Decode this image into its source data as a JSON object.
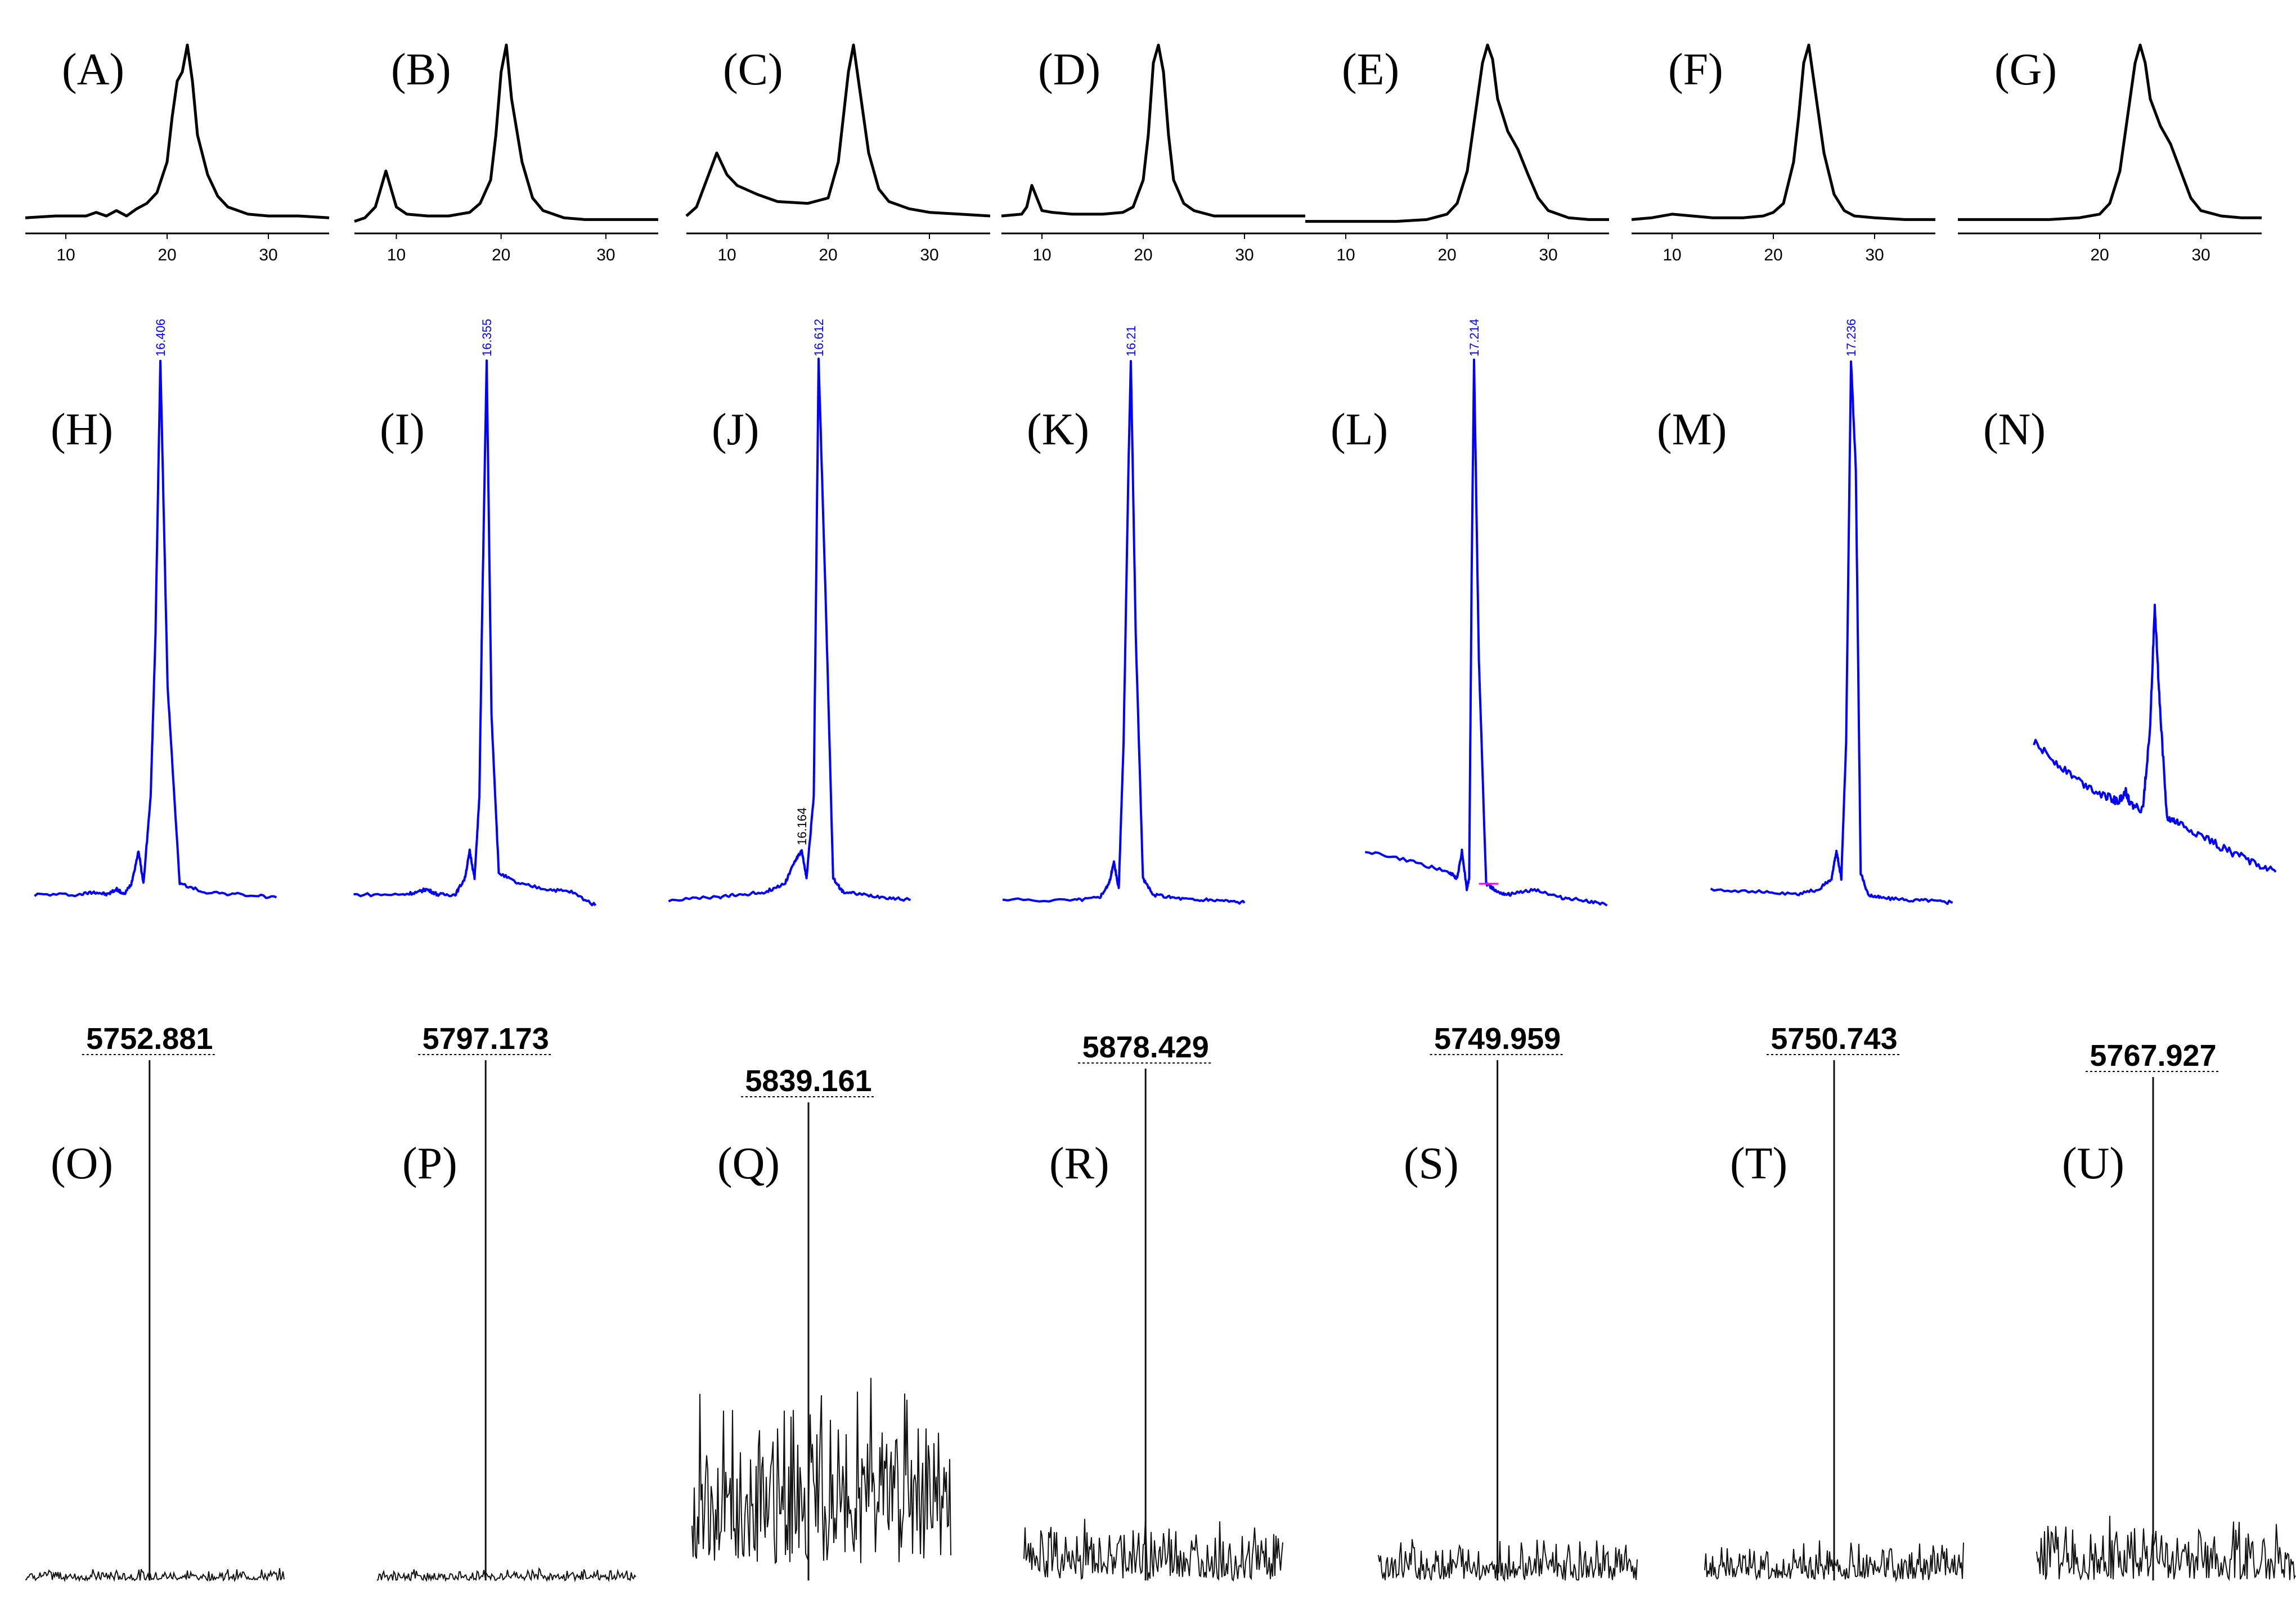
{
  "colors": {
    "sec": "#000000",
    "hplc": "#0000ff",
    "ms": "#111111",
    "baseline_marker": "#ff00ff"
  },
  "chart_data": [
    {
      "id": "A",
      "label": "(A)",
      "type": "line",
      "x_ticks": [
        10,
        20,
        30
      ],
      "xlim": [
        6,
        36
      ],
      "x": [
        6,
        9,
        12,
        13,
        14,
        15,
        16,
        17,
        18,
        19,
        20,
        20.5,
        21,
        21.5,
        22,
        22.5,
        23,
        24,
        25,
        26,
        28,
        30,
        33,
        36
      ],
      "y": [
        0.04,
        0.05,
        0.05,
        0.07,
        0.05,
        0.08,
        0.05,
        0.09,
        0.12,
        0.18,
        0.35,
        0.6,
        0.8,
        0.85,
        1.0,
        0.8,
        0.5,
        0.28,
        0.16,
        0.1,
        0.06,
        0.05,
        0.05,
        0.04
      ]
    },
    {
      "id": "B",
      "label": "(B)",
      "type": "line",
      "x_ticks": [
        10,
        20,
        30
      ],
      "xlim": [
        6,
        35
      ],
      "x": [
        6,
        7,
        8,
        8.5,
        9,
        9.5,
        10,
        11,
        13,
        15,
        17,
        18,
        19,
        19.5,
        20,
        20.5,
        21,
        22,
        23,
        24,
        26,
        28,
        31,
        35
      ],
      "y": [
        0.02,
        0.04,
        0.1,
        0.2,
        0.3,
        0.2,
        0.1,
        0.06,
        0.05,
        0.05,
        0.07,
        0.12,
        0.25,
        0.5,
        0.85,
        1.0,
        0.7,
        0.35,
        0.15,
        0.08,
        0.04,
        0.03,
        0.03,
        0.03
      ]
    },
    {
      "id": "C",
      "label": "(C)",
      "type": "line",
      "x_ticks": [
        10,
        20,
        30
      ],
      "xlim": [
        6,
        36
      ],
      "x": [
        6,
        7,
        8,
        9,
        10,
        11,
        13,
        15,
        18,
        20,
        21,
        21.5,
        22,
        22.5,
        23,
        24,
        25,
        26,
        28,
        30,
        33,
        36
      ],
      "y": [
        0.05,
        0.1,
        0.25,
        0.4,
        0.28,
        0.22,
        0.17,
        0.13,
        0.12,
        0.15,
        0.35,
        0.6,
        0.85,
        1.0,
        0.8,
        0.4,
        0.2,
        0.13,
        0.09,
        0.07,
        0.06,
        0.05
      ]
    },
    {
      "id": "D",
      "label": "(D)",
      "type": "line",
      "x_ticks": [
        10,
        20,
        30
      ],
      "xlim": [
        6,
        36
      ],
      "x": [
        6,
        8,
        8.5,
        9,
        9.5,
        10,
        11,
        13,
        16,
        18,
        19,
        20,
        20.5,
        21,
        21.5,
        22,
        22.5,
        23,
        24,
        25,
        27,
        30,
        33,
        36
      ],
      "y": [
        0.05,
        0.06,
        0.1,
        0.22,
        0.15,
        0.08,
        0.07,
        0.06,
        0.06,
        0.07,
        0.1,
        0.25,
        0.5,
        0.9,
        1.0,
        0.85,
        0.5,
        0.25,
        0.12,
        0.08,
        0.05,
        0.05,
        0.05,
        0.05
      ]
    },
    {
      "id": "E",
      "label": "(E)",
      "type": "line",
      "x_ticks": [
        10,
        20,
        30
      ],
      "xlim": [
        6,
        36
      ],
      "x": [
        6,
        10,
        15,
        18,
        20,
        21,
        22,
        23,
        23.5,
        24,
        24.5,
        25,
        26,
        27,
        28,
        29,
        30,
        32,
        34,
        36
      ],
      "y": [
        0.02,
        0.02,
        0.02,
        0.03,
        0.06,
        0.12,
        0.3,
        0.7,
        0.9,
        1.0,
        0.92,
        0.7,
        0.52,
        0.42,
        0.28,
        0.15,
        0.08,
        0.04,
        0.03,
        0.03
      ]
    },
    {
      "id": "F",
      "label": "(F)",
      "type": "line",
      "x_ticks": [
        10,
        20,
        30
      ],
      "xlim": [
        6,
        36
      ],
      "x": [
        6,
        8,
        10,
        14,
        17,
        19,
        20,
        21,
        22,
        22.5,
        23,
        23.5,
        24,
        25,
        26,
        27,
        28,
        30,
        33,
        36
      ],
      "y": [
        0.03,
        0.04,
        0.06,
        0.04,
        0.04,
        0.05,
        0.07,
        0.12,
        0.35,
        0.6,
        0.9,
        1.0,
        0.8,
        0.4,
        0.17,
        0.08,
        0.05,
        0.04,
        0.03,
        0.03
      ]
    },
    {
      "id": "G",
      "label": "(G)",
      "type": "line",
      "x_ticks": [
        20,
        30
      ],
      "xlim": [
        6,
        36
      ],
      "x": [
        6,
        10,
        15,
        18,
        20,
        21,
        22,
        23,
        23.5,
        24,
        24.5,
        25,
        26,
        27,
        28,
        29,
        30,
        32,
        34,
        36
      ],
      "y": [
        0.03,
        0.03,
        0.03,
        0.04,
        0.06,
        0.12,
        0.3,
        0.7,
        0.9,
        1.0,
        0.9,
        0.7,
        0.55,
        0.45,
        0.3,
        0.15,
        0.08,
        0.05,
        0.04,
        0.04
      ]
    },
    {
      "id": "H",
      "label": "(H)",
      "type": "line",
      "peak_label": "16.406",
      "x": [
        0,
        0.18,
        0.25,
        0.3,
        0.34,
        0.37,
        0.4,
        0.43,
        0.45,
        0.48,
        0.5,
        0.52,
        0.55,
        0.6,
        0.7,
        0.85,
        1
      ],
      "y": [
        0.02,
        0.02,
        0.025,
        0.02,
        0.03,
        0.02,
        0.04,
        0.1,
        0.04,
        0.2,
        0.5,
        1.0,
        0.4,
        0.04,
        0.025,
        0.02,
        0.015
      ]
    },
    {
      "id": "I",
      "label": "(I)",
      "type": "line",
      "peak_label": "16.355",
      "x": [
        0,
        0.2,
        0.27,
        0.3,
        0.35,
        0.42,
        0.46,
        0.48,
        0.5,
        0.52,
        0.53,
        0.55,
        0.57,
        0.6,
        0.68,
        0.8,
        0.9,
        1
      ],
      "y": [
        0.02,
        0.02,
        0.025,
        0.03,
        0.02,
        0.02,
        0.05,
        0.1,
        0.05,
        0.2,
        0.5,
        1.0,
        0.35,
        0.06,
        0.04,
        0.03,
        0.025,
        0.0
      ]
    },
    {
      "id": "J",
      "label": "(J)",
      "type": "line",
      "peak_label": "16.612",
      "minor_label": "16.164",
      "x": [
        0,
        0.2,
        0.3,
        0.4,
        0.48,
        0.52,
        0.55,
        0.57,
        0.6,
        0.62,
        0.65,
        0.68,
        0.72,
        0.8,
        0.9,
        1
      ],
      "y": [
        0.01,
        0.015,
        0.02,
        0.025,
        0.04,
        0.08,
        0.1,
        0.05,
        0.2,
        1.0,
        0.55,
        0.05,
        0.025,
        0.02,
        0.015,
        0.01
      ]
    },
    {
      "id": "K",
      "label": "(K)",
      "type": "line",
      "peak_label": "16.21",
      "x": [
        0,
        0.3,
        0.4,
        0.44,
        0.46,
        0.48,
        0.5,
        0.52,
        0.53,
        0.55,
        0.58,
        0.62,
        0.7,
        0.8,
        0.9,
        1
      ],
      "y": [
        0.01,
        0.01,
        0.015,
        0.04,
        0.08,
        0.03,
        0.3,
        0.8,
        1.0,
        0.5,
        0.05,
        0.02,
        0.015,
        0.01,
        0.01,
        0.005
      ]
    },
    {
      "id": "L",
      "label": "(L)",
      "type": "line",
      "peak_label": "17.214",
      "x": [
        0,
        0.2,
        0.35,
        0.38,
        0.4,
        0.42,
        0.43,
        0.44,
        0.45,
        0.47,
        0.5,
        0.55,
        0.6,
        0.7,
        0.8,
        0.9,
        1
      ],
      "y": [
        0.1,
        0.08,
        0.06,
        0.05,
        0.1,
        0.03,
        0.05,
        0.6,
        1.0,
        0.45,
        0.04,
        0.025,
        0.02,
        0.03,
        0.015,
        0.01,
        0.0
      ]
    },
    {
      "id": "M",
      "label": "(M)",
      "type": "line",
      "peak_label": "17.236",
      "x": [
        0,
        0.2,
        0.35,
        0.45,
        0.5,
        0.52,
        0.54,
        0.56,
        0.58,
        0.6,
        0.62,
        0.65,
        0.7,
        0.8,
        0.9,
        1
      ],
      "y": [
        0.03,
        0.025,
        0.02,
        0.03,
        0.05,
        0.1,
        0.05,
        0.3,
        1.0,
        0.8,
        0.06,
        0.02,
        0.015,
        0.01,
        0.01,
        0.005
      ]
    },
    {
      "id": "N",
      "label": "(N)",
      "type": "line",
      "x": [
        0,
        0.1,
        0.2,
        0.3,
        0.35,
        0.38,
        0.4,
        0.45,
        0.48,
        0.5,
        0.52,
        0.55,
        0.6,
        0.7,
        0.8,
        0.9,
        1
      ],
      "y": [
        0.5,
        0.42,
        0.35,
        0.3,
        0.28,
        0.32,
        0.27,
        0.25,
        0.55,
        1.0,
        0.65,
        0.22,
        0.2,
        0.15,
        0.1,
        0.06,
        0.02
      ]
    },
    {
      "id": "O",
      "label": "(O)",
      "type": "line",
      "mass_label": "5752.881",
      "x_peak": 0.48
    },
    {
      "id": "P",
      "label": "(P)",
      "type": "line",
      "mass_label": "5797.173",
      "x_peak": 0.42
    },
    {
      "id": "Q",
      "label": "(Q)",
      "type": "line",
      "mass_label": "5839.161",
      "x_peak": 0.45
    },
    {
      "id": "R",
      "label": "(R)",
      "type": "line",
      "mass_label": "5878.429",
      "x_peak": 0.47
    },
    {
      "id": "S",
      "label": "(S)",
      "type": "line",
      "mass_label": "5749.959",
      "x_peak": 0.46
    },
    {
      "id": "T",
      "label": "(T)",
      "type": "line",
      "mass_label": "5750.743",
      "x_peak": 0.5
    },
    {
      "id": "U",
      "label": "(U)",
      "type": "line",
      "mass_label": "5767.927",
      "x_peak": 0.45
    }
  ]
}
